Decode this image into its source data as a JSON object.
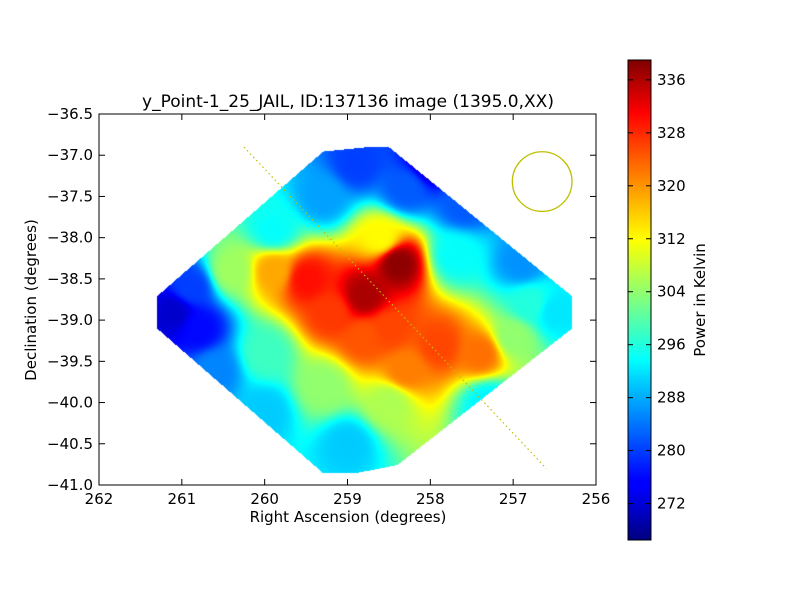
{
  "chart_data": {
    "type": "heatmap",
    "title": "y_Point-1_25_JAIL, ID:137136 image (1395.0,XX)",
    "xlabel": "Right Ascension (degrees)",
    "ylabel": "Declination (degrees)",
    "xlim": [
      262,
      256
    ],
    "ylim": [
      -41.0,
      -36.5
    ],
    "x_ticks": [
      "262",
      "261",
      "260",
      "259",
      "258",
      "257",
      "256"
    ],
    "y_ticks": [
      "−36.5",
      "−37.0",
      "−37.5",
      "−38.0",
      "−38.5",
      "−39.0",
      "−39.5",
      "−40.0",
      "−40.5",
      "−41.0"
    ],
    "colorbar": {
      "label": "Power in Kelvin",
      "range": [
        266.5,
        339
      ],
      "ticks": [
        "272",
        "280",
        "288",
        "296",
        "304",
        "312",
        "320",
        "328",
        "336"
      ],
      "colormap": "jet"
    },
    "grid": false,
    "map_outline_radec": [
      [
        258.8,
        -36.9
      ],
      [
        258.5,
        -36.9
      ],
      [
        256.3,
        -38.7
      ],
      [
        256.3,
        -39.1
      ],
      [
        258.4,
        -40.75
      ],
      [
        258.9,
        -40.85
      ],
      [
        259.3,
        -40.85
      ],
      [
        261.3,
        -39.1
      ],
      [
        261.3,
        -38.7
      ],
      [
        259.3,
        -36.95
      ]
    ],
    "field_values": [
      {
        "ra": 258.8,
        "dec": -38.7,
        "value": 336
      },
      {
        "ra": 258.4,
        "dec": -38.3,
        "value": 338
      },
      {
        "ra": 259.5,
        "dec": -38.5,
        "value": 329
      },
      {
        "ra": 259.9,
        "dec": -38.4,
        "value": 318
      },
      {
        "ra": 258.5,
        "dec": -39.1,
        "value": 325
      },
      {
        "ra": 257.9,
        "dec": -39.3,
        "value": 325
      },
      {
        "ra": 257.4,
        "dec": -39.4,
        "value": 322
      },
      {
        "ra": 258.3,
        "dec": -39.6,
        "value": 321
      },
      {
        "ra": 258.8,
        "dec": -39.2,
        "value": 324
      },
      {
        "ra": 258.6,
        "dec": -38.0,
        "value": 312
      },
      {
        "ra": 259.2,
        "dec": -38.9,
        "value": 326
      },
      {
        "ra": 260.4,
        "dec": -38.4,
        "value": 305
      },
      {
        "ra": 260.0,
        "dec": -39.4,
        "value": 298
      },
      {
        "ra": 259.3,
        "dec": -39.8,
        "value": 304
      },
      {
        "ra": 258.5,
        "dec": -40.0,
        "value": 306
      },
      {
        "ra": 259.0,
        "dec": -40.5,
        "value": 290
      },
      {
        "ra": 257.3,
        "dec": -40.0,
        "value": 293
      },
      {
        "ra": 256.5,
        "dec": -38.9,
        "value": 292
      },
      {
        "ra": 256.9,
        "dec": -38.3,
        "value": 286
      },
      {
        "ra": 257.7,
        "dec": -38.2,
        "value": 294
      },
      {
        "ra": 257.6,
        "dec": -37.6,
        "value": 282
      },
      {
        "ra": 258.3,
        "dec": -37.4,
        "value": 282
      },
      {
        "ra": 258.0,
        "dec": -37.1,
        "value": 272
      },
      {
        "ra": 258.9,
        "dec": -37.1,
        "value": 280
      },
      {
        "ra": 259.3,
        "dec": -37.5,
        "value": 287
      },
      {
        "ra": 259.9,
        "dec": -37.9,
        "value": 294
      },
      {
        "ra": 260.9,
        "dec": -38.6,
        "value": 280
      },
      {
        "ra": 261.1,
        "dec": -38.9,
        "value": 272
      },
      {
        "ra": 260.8,
        "dec": -39.1,
        "value": 276
      },
      {
        "ra": 260.6,
        "dec": -39.6,
        "value": 285
      },
      {
        "ra": 260.0,
        "dec": -40.1,
        "value": 290
      },
      {
        "ra": 257.0,
        "dec": -39.2,
        "value": 304
      },
      {
        "ra": 256.8,
        "dec": -38.8,
        "value": 296
      }
    ],
    "overlays": {
      "beam_circle": {
        "ra": 256.65,
        "dec": -37.32,
        "radius_deg": 0.36,
        "color": "#bfbf00"
      },
      "track_line": {
        "start": [
          260.25,
          -36.9
        ],
        "end": [
          256.6,
          -40.8
        ],
        "color": "#bfbf00",
        "style": "dotted"
      }
    }
  }
}
